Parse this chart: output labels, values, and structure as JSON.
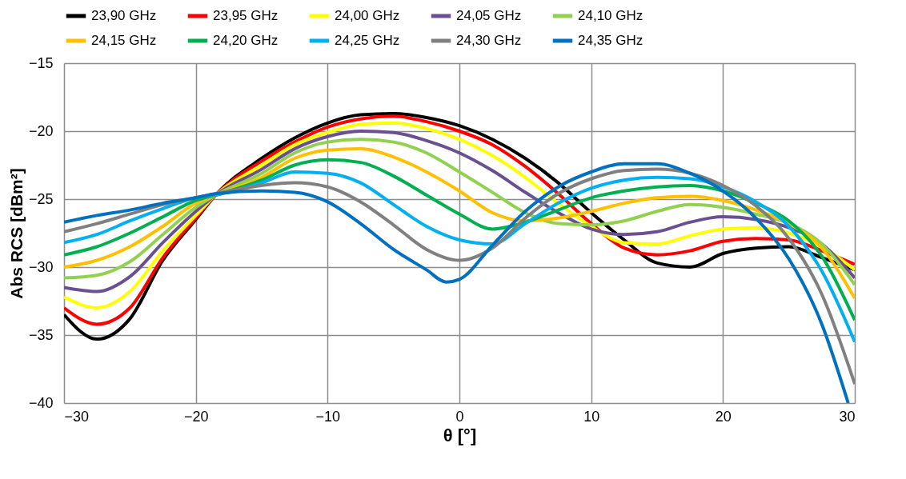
{
  "chart_data": {
    "type": "line",
    "xlabel": "θ [°]",
    "ylabel": "Abs RCS [dBm²]",
    "x": [
      -30,
      -27.5,
      -25,
      -22.5,
      -20,
      -18.5,
      -15,
      -12.5,
      -10,
      -7.5,
      -5,
      -2.5,
      0,
      2.5,
      5,
      7.5,
      10,
      12.5,
      15,
      17.5,
      20,
      22.5,
      25,
      27.5,
      30
    ],
    "xlim": [
      -30,
      30
    ],
    "xticks": [
      -30,
      -20,
      -10,
      0,
      10,
      20,
      30
    ],
    "ylim": [
      -40,
      -15
    ],
    "yticks": [
      -40,
      -35,
      -30,
      -25,
      -20,
      -15
    ],
    "grid": true,
    "legend": "top",
    "marker": "none",
    "line_style": "solid",
    "series": [
      {
        "name": "23,90 GHz",
        "color": "#000000",
        "values": [
          -33.5,
          -35.3,
          -33.8,
          -29.5,
          -26.5,
          -24.7,
          -22.0,
          -20.5,
          -19.4,
          -18.8,
          -18.7,
          -19.0,
          -19.6,
          -20.6,
          -22.0,
          -23.8,
          -26.0,
          -28.0,
          -29.7,
          -30.0,
          -29.0,
          -28.6,
          -28.5,
          -29.3,
          -30.2
        ]
      },
      {
        "name": "23,95 GHz",
        "color": "#ff0000",
        "values": [
          -33.0,
          -34.2,
          -33.0,
          -29.3,
          -26.4,
          -24.7,
          -22.2,
          -20.8,
          -19.7,
          -19.1,
          -18.9,
          -19.3,
          -20.0,
          -21.0,
          -22.6,
          -24.6,
          -26.8,
          -28.6,
          -29.1,
          -28.8,
          -28.1,
          -27.9,
          -28.0,
          -28.8,
          -29.8
        ]
      },
      {
        "name": "24,00 GHz",
        "color": "#ffff00",
        "values": [
          -32.2,
          -33.0,
          -31.8,
          -28.8,
          -26.2,
          -24.7,
          -22.5,
          -21.0,
          -20.1,
          -19.5,
          -19.4,
          -19.8,
          -20.6,
          -21.8,
          -23.4,
          -25.3,
          -27.0,
          -28.2,
          -28.3,
          -27.7,
          -27.2,
          -27.1,
          -27.5,
          -28.5,
          -30.2
        ]
      },
      {
        "name": "24,05 GHz",
        "color": "#6a5090",
        "values": [
          -31.5,
          -31.8,
          -30.7,
          -28.2,
          -25.9,
          -24.7,
          -22.8,
          -21.3,
          -20.4,
          -20.0,
          -20.1,
          -20.7,
          -21.6,
          -22.9,
          -24.5,
          -26.0,
          -27.2,
          -27.6,
          -27.4,
          -26.7,
          -26.3,
          -26.5,
          -27.1,
          -28.3,
          -30.8
        ]
      },
      {
        "name": "24,10 GHz",
        "color": "#92d050",
        "values": [
          -30.8,
          -30.6,
          -29.6,
          -27.6,
          -25.6,
          -24.7,
          -23.1,
          -21.6,
          -20.8,
          -20.6,
          -20.8,
          -21.6,
          -23.0,
          -24.5,
          -26.0,
          -26.8,
          -26.9,
          -26.6,
          -25.9,
          -25.4,
          -25.6,
          -26.1,
          -26.8,
          -28.3,
          -31.3
        ]
      },
      {
        "name": "24,15 GHz",
        "color": "#ffc000",
        "values": [
          -30.0,
          -29.5,
          -28.5,
          -27.0,
          -25.3,
          -24.7,
          -23.4,
          -22.0,
          -21.4,
          -21.3,
          -21.9,
          -23.0,
          -24.4,
          -26.0,
          -26.6,
          -26.4,
          -25.9,
          -25.3,
          -24.9,
          -24.8,
          -25.1,
          -25.8,
          -26.8,
          -28.6,
          -32.3
        ]
      },
      {
        "name": "24,20 GHz",
        "color": "#00b050",
        "values": [
          -29.1,
          -28.5,
          -27.5,
          -26.3,
          -25.1,
          -24.7,
          -23.6,
          -22.5,
          -22.1,
          -22.3,
          -23.3,
          -24.7,
          -26.1,
          -27.2,
          -26.7,
          -25.8,
          -24.9,
          -24.4,
          -24.1,
          -24.0,
          -24.4,
          -25.3,
          -26.6,
          -29.2,
          -33.9
        ]
      },
      {
        "name": "24,25 GHz",
        "color": "#00b0f0",
        "values": [
          -28.2,
          -27.6,
          -26.6,
          -25.7,
          -24.9,
          -24.7,
          -23.8,
          -23.0,
          -23.1,
          -23.8,
          -25.4,
          -27.0,
          -28.0,
          -28.3,
          -26.8,
          -25.3,
          -24.2,
          -23.6,
          -23.4,
          -23.5,
          -24.1,
          -25.2,
          -27.0,
          -30.3,
          -35.5
        ]
      },
      {
        "name": "24,30 GHz",
        "color": "#808080",
        "values": [
          -27.4,
          -26.8,
          -26.1,
          -25.4,
          -24.9,
          -24.6,
          -24.0,
          -23.8,
          -24.1,
          -25.2,
          -26.9,
          -28.7,
          -29.5,
          -28.6,
          -26.4,
          -24.6,
          -23.5,
          -22.9,
          -22.8,
          -23.1,
          -24.0,
          -25.5,
          -27.9,
          -32.0,
          -38.6
        ]
      },
      {
        "name": "24,35 GHz",
        "color": "#0070c0",
        "x": [
          -30,
          -27.5,
          -25,
          -22.5,
          -20,
          -18.5,
          -15,
          -12.5,
          -10,
          -7.5,
          -5,
          -2.5,
          -1,
          0,
          2.5,
          5,
          7.5,
          10,
          12.5,
          15,
          17.5,
          20,
          22.5,
          25,
          27.5,
          29.5
        ],
        "values": [
          -26.7,
          -26.2,
          -25.8,
          -25.3,
          -24.9,
          -24.6,
          -24.4,
          -24.5,
          -25.2,
          -26.8,
          -28.7,
          -30.2,
          -31.1,
          -30.9,
          -28.4,
          -25.9,
          -24.1,
          -23.0,
          -22.4,
          -22.4,
          -23.1,
          -24.4,
          -26.4,
          -29.4,
          -34.2,
          -40.0
        ]
      }
    ]
  }
}
